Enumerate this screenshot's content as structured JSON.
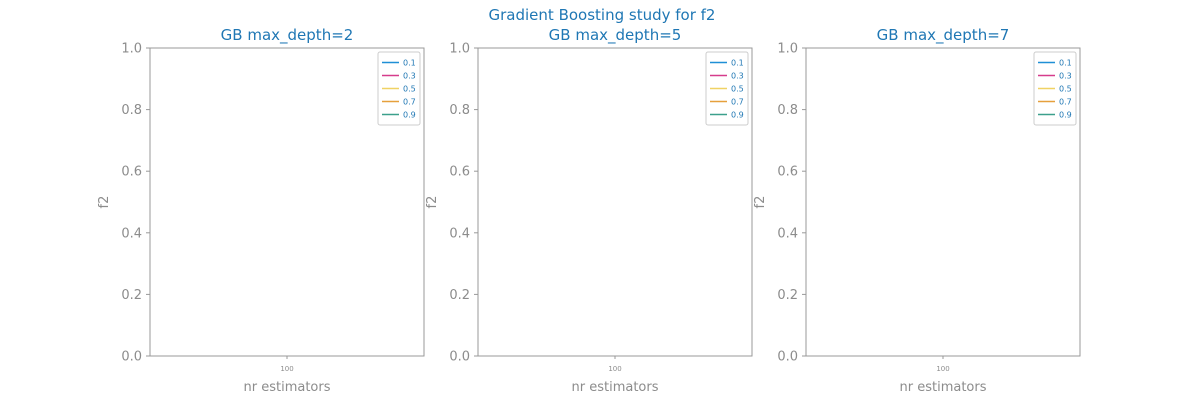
{
  "figure": {
    "title": "Gradient Boosting study for f2"
  },
  "chart_data": [
    {
      "type": "line",
      "title": "GB max_depth=2",
      "xlabel": "nr estimators",
      "ylabel": "f2",
      "ylim": [
        0,
        1
      ],
      "yticks": [
        "0.0",
        "0.2",
        "0.4",
        "0.6",
        "0.8",
        "1.0"
      ],
      "xticks": [
        "100"
      ],
      "grid": false,
      "legend": "top-right",
      "series": [
        {
          "name": "0.1",
          "color": "#1f8fd6",
          "x": [],
          "values": []
        },
        {
          "name": "0.3",
          "color": "#d63c8c",
          "x": [],
          "values": []
        },
        {
          "name": "0.5",
          "color": "#f0d264",
          "x": [],
          "values": []
        },
        {
          "name": "0.7",
          "color": "#e6a03c",
          "x": [],
          "values": []
        },
        {
          "name": "0.9",
          "color": "#3ca08c",
          "x": [],
          "values": []
        }
      ]
    },
    {
      "type": "line",
      "title": "GB max_depth=5",
      "xlabel": "nr estimators",
      "ylabel": "f2",
      "ylim": [
        0,
        1
      ],
      "yticks": [
        "0.0",
        "0.2",
        "0.4",
        "0.6",
        "0.8",
        "1.0"
      ],
      "xticks": [
        "100"
      ],
      "grid": false,
      "legend": "top-right",
      "series": [
        {
          "name": "0.1",
          "color": "#1f8fd6",
          "x": [],
          "values": []
        },
        {
          "name": "0.3",
          "color": "#d63c8c",
          "x": [],
          "values": []
        },
        {
          "name": "0.5",
          "color": "#f0d264",
          "x": [],
          "values": []
        },
        {
          "name": "0.7",
          "color": "#e6a03c",
          "x": [],
          "values": []
        },
        {
          "name": "0.9",
          "color": "#3ca08c",
          "x": [],
          "values": []
        }
      ]
    },
    {
      "type": "line",
      "title": "GB max_depth=7",
      "xlabel": "nr estimators",
      "ylabel": "f2",
      "ylim": [
        0,
        1
      ],
      "yticks": [
        "0.0",
        "0.2",
        "0.4",
        "0.6",
        "0.8",
        "1.0"
      ],
      "xticks": [
        "100"
      ],
      "grid": false,
      "legend": "top-right",
      "series": [
        {
          "name": "0.1",
          "color": "#1f8fd6",
          "x": [],
          "values": []
        },
        {
          "name": "0.3",
          "color": "#d63c8c",
          "x": [],
          "values": []
        },
        {
          "name": "0.5",
          "color": "#f0d264",
          "x": [],
          "values": []
        },
        {
          "name": "0.7",
          "color": "#e6a03c",
          "x": [],
          "values": []
        },
        {
          "name": "0.9",
          "color": "#3ca08c",
          "x": [],
          "values": []
        }
      ]
    }
  ]
}
